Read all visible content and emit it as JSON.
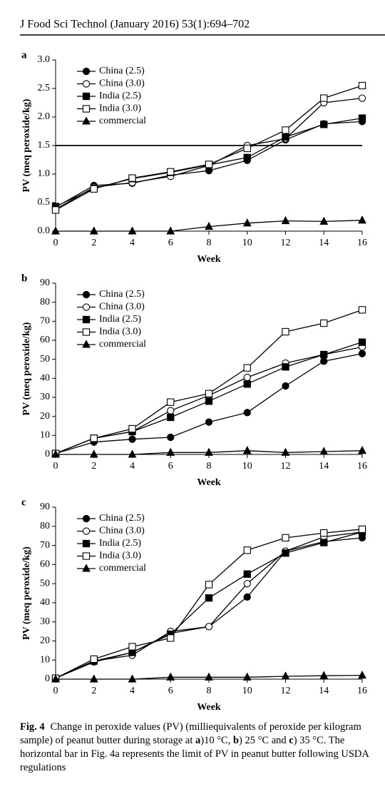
{
  "header": {
    "journal": "J Food Sci Technol (January 2016) 53(1):694–702"
  },
  "chart_data": [
    {
      "type": "line",
      "panel": "a",
      "ylabel": "PV (meq peroxide/kg)",
      "xlabel": "Week",
      "x": [
        0,
        2,
        4,
        6,
        8,
        10,
        12,
        14,
        16
      ],
      "xlim": [
        0,
        16
      ],
      "xticks": [
        0,
        2,
        4,
        6,
        8,
        10,
        12,
        14,
        16
      ],
      "ylim": [
        0,
        3
      ],
      "yticks": [
        {
          "value": 0,
          "label": "0.0"
        },
        {
          "value": 0.5,
          "label": "0.5"
        },
        {
          "value": 1,
          "label": "1.0"
        },
        {
          "value": 1.5,
          "label": "1.5"
        },
        {
          "value": 2,
          "label": "2.0"
        },
        {
          "value": 2.5,
          "label": "2.5"
        },
        {
          "value": 3,
          "label": "3.0"
        }
      ],
      "hline": 1.5,
      "series": [
        {
          "name": "China (2.5)",
          "color": "#000000",
          "marker": "circle",
          "marker_fill": "#000000",
          "values": [
            0.42,
            0.8,
            0.84,
            0.98,
            1.06,
            1.24,
            1.6,
            1.88,
            1.92
          ]
        },
        {
          "name": "China (3.0)",
          "color": "#000000",
          "marker": "circle",
          "marker_fill": "#ffffff",
          "values": [
            0.38,
            0.77,
            0.85,
            0.96,
            1.15,
            1.5,
            1.62,
            2.25,
            2.33
          ]
        },
        {
          "name": "India (2.5)",
          "color": "#000000",
          "marker": "square",
          "marker_fill": "#000000",
          "values": [
            0.43,
            0.75,
            0.92,
            1.03,
            1.16,
            1.29,
            1.65,
            1.87,
            1.98
          ]
        },
        {
          "name": "India (3.0)",
          "color": "#000000",
          "marker": "square",
          "marker_fill": "#ffffff",
          "values": [
            0.37,
            0.74,
            0.93,
            1.04,
            1.17,
            1.45,
            1.77,
            2.33,
            2.55
          ]
        },
        {
          "name": "commercial",
          "color": "#000000",
          "marker": "triangle",
          "marker_fill": "#000000",
          "values": [
            0,
            0,
            0,
            0,
            0.08,
            0.14,
            0.18,
            0.17,
            0.19
          ]
        }
      ]
    },
    {
      "type": "line",
      "panel": "b",
      "ylabel": "PV (meq peroxide/kg)",
      "xlabel": "Week",
      "x": [
        0,
        2,
        4,
        6,
        8,
        10,
        12,
        14,
        16
      ],
      "xlim": [
        0,
        16
      ],
      "xticks": [
        0,
        2,
        4,
        6,
        8,
        10,
        12,
        14,
        16
      ],
      "ylim": [
        0,
        90
      ],
      "yticks": [
        0,
        10,
        20,
        30,
        40,
        50,
        60,
        70,
        80,
        90
      ],
      "series": [
        {
          "name": "China (2.5)",
          "color": "#000000",
          "marker": "circle",
          "marker_fill": "#000000",
          "values": [
            0.5,
            6.5,
            8,
            9,
            17,
            22,
            36,
            49,
            53
          ]
        },
        {
          "name": "China (3.0)",
          "color": "#000000",
          "marker": "circle",
          "marker_fill": "#ffffff",
          "values": [
            0.5,
            8.5,
            12,
            23,
            31,
            40.5,
            48,
            52.5,
            56.5
          ]
        },
        {
          "name": "India (2.5)",
          "color": "#000000",
          "marker": "square",
          "marker_fill": "#000000",
          "values": [
            0.5,
            8.5,
            12,
            19.5,
            28,
            37,
            46,
            52.5,
            59
          ]
        },
        {
          "name": "India (3.0)",
          "color": "#000000",
          "marker": "square",
          "marker_fill": "#ffffff",
          "values": [
            0.5,
            8.5,
            13.5,
            27.5,
            32,
            45.5,
            64.5,
            69,
            76
          ]
        },
        {
          "name": "commercial",
          "color": "#000000",
          "marker": "triangle",
          "marker_fill": "#000000",
          "values": [
            0,
            0,
            0,
            1,
            1,
            2,
            1,
            1.5,
            2
          ]
        }
      ]
    },
    {
      "type": "line",
      "panel": "c",
      "ylabel": "PV (meq peroxide/kg)",
      "xlabel": "Week",
      "x": [
        0,
        2,
        4,
        6,
        8,
        10,
        12,
        14,
        16
      ],
      "xlim": [
        0,
        16
      ],
      "xticks": [
        0,
        2,
        4,
        6,
        8,
        10,
        12,
        14,
        16
      ],
      "ylim": [
        0,
        90
      ],
      "yticks": [
        0,
        10,
        20,
        30,
        40,
        50,
        60,
        70,
        80,
        90
      ],
      "series": [
        {
          "name": "China (2.5)",
          "color": "#000000",
          "marker": "circle",
          "marker_fill": "#000000",
          "values": [
            0.5,
            9,
            14,
            24,
            27.5,
            43,
            67,
            72,
            74
          ]
        },
        {
          "name": "China (3.0)",
          "color": "#000000",
          "marker": "circle",
          "marker_fill": "#ffffff",
          "values": [
            0.5,
            9.5,
            12.5,
            25,
            27.5,
            50,
            67,
            74.5,
            77
          ]
        },
        {
          "name": "India (2.5)",
          "color": "#000000",
          "marker": "square",
          "marker_fill": "#000000",
          "values": [
            0.5,
            9.5,
            14,
            23.5,
            42.5,
            55,
            66,
            71.5,
            77
          ]
        },
        {
          "name": "India (3.0)",
          "color": "#000000",
          "marker": "square",
          "marker_fill": "#ffffff",
          "values": [
            0.5,
            10.5,
            17,
            21.5,
            49.5,
            67.5,
            74,
            76.5,
            78.5
          ]
        },
        {
          "name": "commercial",
          "color": "#000000",
          "marker": "triangle",
          "marker_fill": "#000000",
          "values": [
            0,
            0,
            0,
            1,
            1,
            1,
            1.5,
            1.8,
            2
          ]
        }
      ]
    }
  ],
  "caption": {
    "label": "Fig. 4",
    "parts": [
      {
        "text": "Change in peroxide values (PV) (milliequivalents of peroxide per kilogram sample) of peanut butter during storage at ",
        "bold": false
      },
      {
        "text": "a",
        "bold": true
      },
      {
        "text": ")10 °C, ",
        "bold": false
      },
      {
        "text": "b",
        "bold": true
      },
      {
        "text": ") 25 °C and ",
        "bold": false
      },
      {
        "text": "c",
        "bold": true
      },
      {
        "text": ") 35 °C. The horizontal bar in Fig. 4a represents the limit of PV in peanut butter following USDA regulations",
        "bold": false
      }
    ]
  }
}
